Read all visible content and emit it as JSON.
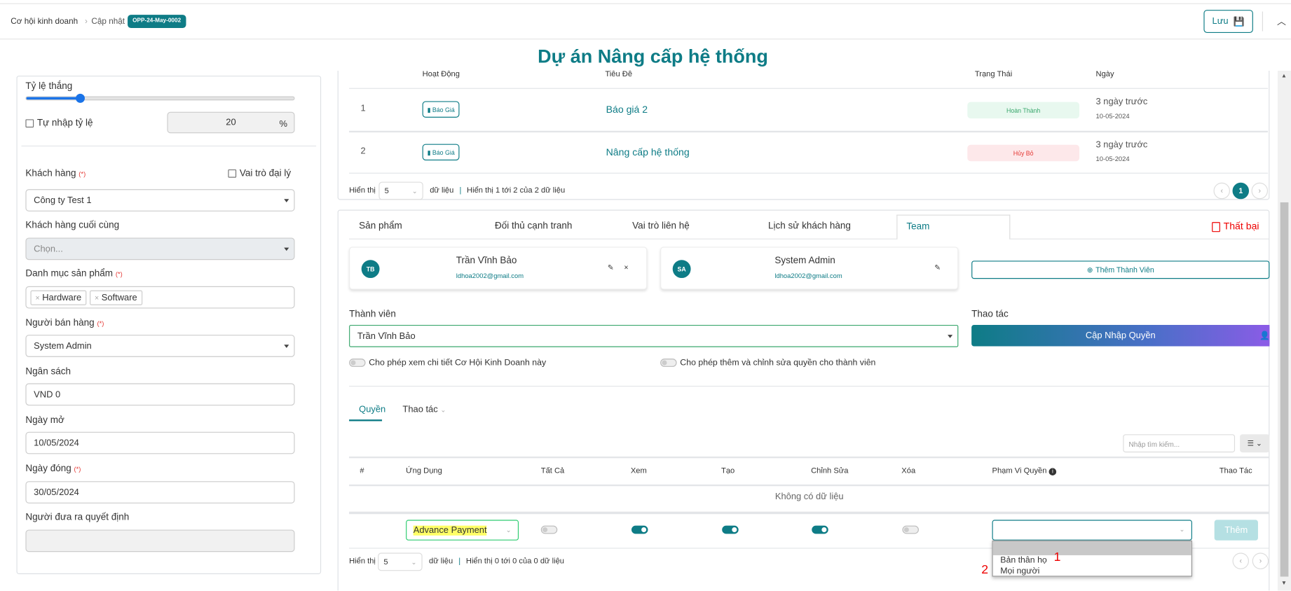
{
  "header": {
    "breadcrumb": [
      "Cơ hội kinh doanh",
      "Cập nhật"
    ],
    "code_badge": "OPP-24-May-0002",
    "save_label": "Lưu"
  },
  "page_title": "Dự án Nâng cấp hệ thống",
  "left_form": {
    "win_rate_label": "Tỷ lệ thắng",
    "win_rate_percent": 20,
    "manual_rate_label": "Tự nhập tỷ lệ",
    "manual_rate_value": "20",
    "percent_sign": "%",
    "customer_label": "Khách hàng",
    "required_mark": "(*)",
    "agent_role_label": "Vai trò đại lý",
    "customer_value": "Công ty Test 1",
    "end_customer_label": "Khách hàng cuối cùng",
    "end_customer_placeholder": "Chọn...",
    "product_category_label": "Danh mục sản phẩm",
    "product_tags": [
      "Hardware",
      "Software"
    ],
    "salesperson_label": "Người bán hàng",
    "salesperson_value": "System Admin",
    "budget_label": "Ngân sách",
    "budget_value": "VND 0",
    "open_date_label": "Ngày mở",
    "open_date_value": "10/05/2024",
    "close_date_label": "Ngày đóng",
    "close_date_value": "30/05/2024",
    "decision_maker_label": "Người đưa ra quyết định",
    "decision_maker_value": ""
  },
  "activity_table": {
    "columns": [
      "Hoạt Động",
      "Tiêu Đề",
      "Trạng Thái",
      "Ngày"
    ],
    "rows": [
      {
        "index": "1",
        "activity": "Báo Giá",
        "title": "Báo giá 2",
        "status": "Hoàn Thành",
        "relative": "3 ngày trước",
        "date": "10-05-2024"
      },
      {
        "index": "2",
        "activity": "Báo Giá",
        "title": "Nâng cấp hệ thống",
        "status": "Hủy Bỏ",
        "relative": "3 ngày trước",
        "date": "10-05-2024"
      }
    ],
    "show_label": "Hiển thị",
    "page_size": "5",
    "unit": "dữ liệu",
    "summary": "Hiển thị 1 tới 2 của 2 dữ liệu",
    "current_page": "1"
  },
  "tabs": [
    "Sản phẩm",
    "Đối thủ cạnh tranh",
    "Vai trò liên hệ",
    "Lịch sử khách hàng",
    "Team"
  ],
  "lost_label": "Thất bại",
  "members": [
    {
      "initials": "TB",
      "name": "Trần Vĩnh Bảo",
      "email": "ldhoa2002@gmail.com"
    },
    {
      "initials": "SA",
      "name": "System Admin",
      "email": "ldhoa2002@gmail.com"
    }
  ],
  "add_member_label": "Thêm Thành Viên",
  "member_field_label": "Thành viên",
  "member_value": "Trần Vĩnh Bảo",
  "action_label": "Thao tác",
  "update_permission_label": "Cập Nhập Quyền",
  "toggle_view_label": "Cho phép xem chi tiết Cơ Hội Kinh Doanh này",
  "toggle_edit_label": "Cho phép thêm và chỉnh sửa quyền cho thành viên",
  "sub_tabs": [
    "Quyền",
    "Thao tác"
  ],
  "search_placeholder": "Nhập tìm kiếm...",
  "perm_table": {
    "columns": [
      "#",
      "Ứng Dụng",
      "Tất Cả",
      "Xem",
      "Tạo",
      "Chỉnh Sửa",
      "Xóa",
      "Phạm Vi Quyền",
      "Thao Tác"
    ],
    "empty": "Không có dữ liệu",
    "new_row": {
      "app": "Advance Payment",
      "all": false,
      "view": true,
      "create": true,
      "edit": true,
      "delete": false,
      "add_label": "Thêm"
    },
    "scope_options": [
      "Bản thân họ",
      "Mọi người"
    ],
    "show_label": "Hiển thị",
    "page_size": "5",
    "unit": "dữ liệu",
    "summary": "Hiển thị 0 tới 0 của 0 dữ liệu"
  },
  "annotations": [
    "1",
    "2"
  ],
  "colors": {
    "primary": "#0e7c86",
    "danger": "#e53935",
    "success_bg": "#e8f8ef",
    "danger_bg": "#fde8ea"
  }
}
